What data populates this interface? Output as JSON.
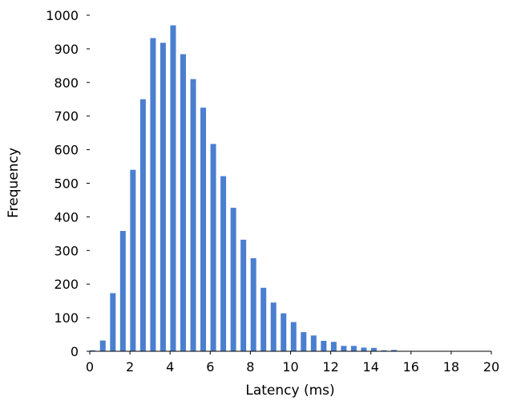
{
  "chart_data": {
    "type": "bar",
    "title": "",
    "xlabel": "Latency (ms)",
    "ylabel": "Frequency",
    "xlim": [
      0,
      20
    ],
    "ylim": [
      0,
      1000
    ],
    "xticks": [
      0,
      2,
      4,
      6,
      8,
      10,
      12,
      14,
      16,
      18,
      20
    ],
    "yticks": [
      0,
      100,
      200,
      300,
      400,
      500,
      600,
      700,
      800,
      900,
      1000
    ],
    "xtick_labels": [
      "0",
      "2",
      "4",
      "6",
      "8",
      "10",
      "12",
      "14",
      "16",
      "18",
      "20"
    ],
    "ytick_labels": [
      "0",
      "100",
      "200",
      "300",
      "400",
      "500",
      "600",
      "700",
      "800",
      "900",
      "1000"
    ],
    "grid": false,
    "legend": "none",
    "bar_color": "#4a7fd0",
    "x": [
      0.14,
      0.65,
      1.15,
      1.65,
      2.15,
      2.65,
      3.15,
      3.65,
      4.15,
      4.65,
      5.15,
      5.65,
      6.15,
      6.65,
      7.15,
      7.65,
      8.15,
      8.65,
      9.15,
      9.65,
      10.15,
      10.65,
      11.15,
      11.65,
      12.15,
      12.65,
      13.15,
      13.65,
      14.15,
      14.65,
      15.15,
      15.65
    ],
    "values": [
      3,
      32,
      173,
      358,
      540,
      750,
      932,
      918,
      970,
      884,
      810,
      725,
      617,
      521,
      427,
      332,
      277,
      189,
      145,
      113,
      87,
      57,
      47,
      31,
      28,
      16,
      16,
      11,
      10,
      3,
      4,
      1
    ]
  }
}
